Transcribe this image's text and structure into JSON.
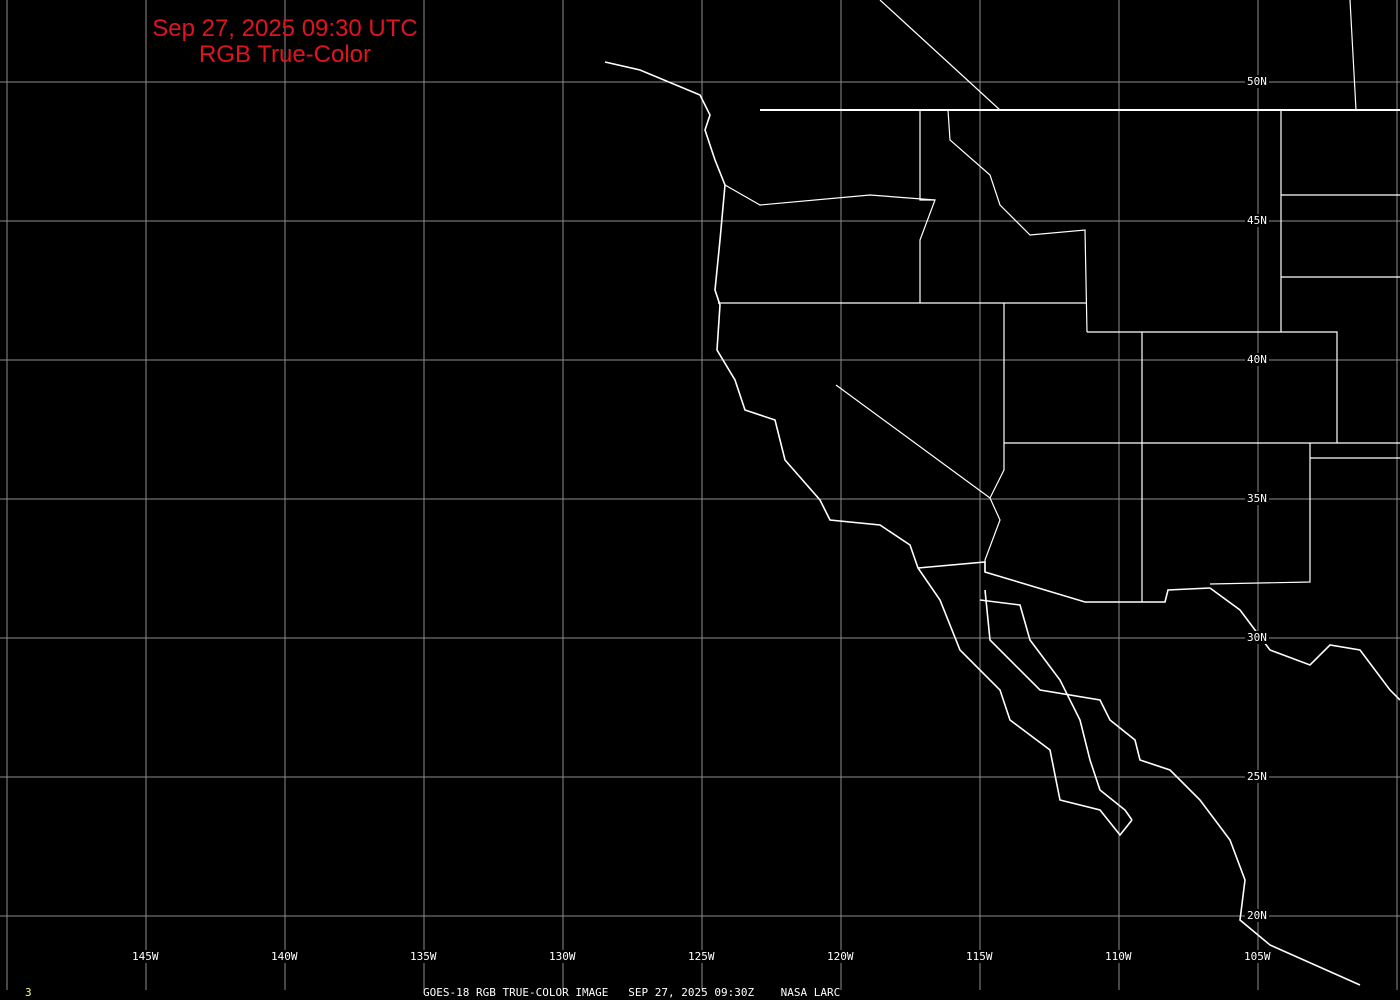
{
  "title": {
    "line1": "Sep 27, 2025 09:30 UTC",
    "line2": "RGB True-Color"
  },
  "lat_labels": [
    "50N",
    "45N",
    "40N",
    "35N",
    "30N",
    "25N",
    "20N"
  ],
  "lon_labels": [
    "145W",
    "140W",
    "135W",
    "130W",
    "125W",
    "120W",
    "115W",
    "110W",
    "105W"
  ],
  "footer": {
    "frame": "3",
    "caption": "GOES-18 RGB TRUE-COLOR IMAGE   SEP 27, 2025 09:30Z    NASA LARC"
  },
  "colors": {
    "title": "#e0141e",
    "grid": "#8c8c8c",
    "coast": "#ffffff",
    "frame": "#ffff66"
  }
}
